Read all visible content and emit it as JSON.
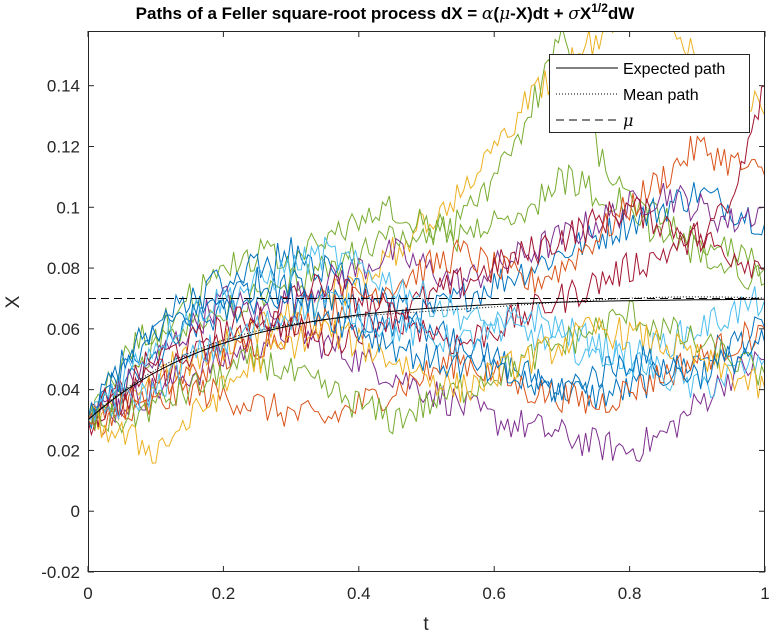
{
  "chart_data": {
    "type": "line",
    "title": {
      "prefix": "Paths of a Feller square-root process dX = ",
      "alpha": "α",
      "open": "(",
      "mu": "μ",
      "mid": "-X)dt + ",
      "sigma": "σ",
      "X": "X",
      "exponent": "1/2",
      "suffix": "dW"
    },
    "xlabel": "t",
    "ylabel": "X",
    "xlim": [
      0,
      1
    ],
    "ylim": [
      -0.02,
      0.158
    ],
    "xticks": [
      0,
      0.2,
      0.4,
      0.6,
      0.8,
      1
    ],
    "xtick_labels": [
      "0",
      "0.2",
      "0.4",
      "0.6",
      "0.8",
      "1"
    ],
    "yticks": [
      -0.02,
      0,
      0.02,
      0.04,
      0.06,
      0.08,
      0.1,
      0.12,
      0.14
    ],
    "ytick_labels": [
      "-0.02",
      "0",
      "0.02",
      "0.04",
      "0.06",
      "0.08",
      "0.1",
      "0.12",
      "0.14"
    ],
    "grid": false,
    "legend": {
      "placement": "top-right",
      "entries": [
        {
          "label": "Expected path",
          "style": "solid"
        },
        {
          "label": "Mean path",
          "style": "dotted"
        },
        {
          "label": "μ",
          "style": "dashed"
        }
      ]
    },
    "process": {
      "x0": 0.03,
      "mu": 0.07,
      "alpha": 5
    },
    "reference_lines": [
      {
        "name": "Expected path",
        "formula": "0.07 - 0.04*exp(-5t)",
        "color": "#000000"
      },
      {
        "name": "μ",
        "y": 0.07,
        "color": "#000000"
      }
    ],
    "colors": [
      "#0072BD",
      "#D95319",
      "#EDB120",
      "#7E2F8E",
      "#77AC30",
      "#4DBEEE",
      "#A2142F"
    ],
    "series": [
      {
        "color": "#EDB120",
        "x": [
          0,
          0.05,
          0.1,
          0.15,
          0.2,
          0.25,
          0.3,
          0.35,
          0.4,
          0.45,
          0.5,
          0.55,
          0.6,
          0.65,
          0.7,
          0.75,
          0.8,
          0.85,
          0.9,
          0.95,
          1
        ],
        "y": [
          0.03,
          0.035,
          0.045,
          0.05,
          0.055,
          0.06,
          0.065,
          0.07,
          0.075,
          0.085,
          0.095,
          0.105,
          0.12,
          0.135,
          0.145,
          0.155,
          0.17,
          0.165,
          0.15,
          0.14,
          0.13
        ]
      },
      {
        "color": "#77AC30",
        "x": [
          0,
          0.05,
          0.1,
          0.15,
          0.2,
          0.25,
          0.3,
          0.35,
          0.4,
          0.45,
          0.5,
          0.55,
          0.6,
          0.65,
          0.7,
          0.75,
          0.8,
          0.85,
          0.9,
          0.95,
          1
        ],
        "y": [
          0.03,
          0.04,
          0.055,
          0.06,
          0.065,
          0.07,
          0.075,
          0.08,
          0.085,
          0.09,
          0.09,
          0.095,
          0.11,
          0.13,
          0.155,
          0.12,
          0.1,
          0.09,
          0.085,
          0.08,
          0.075
        ]
      },
      {
        "color": "#77AC30",
        "x": [
          0,
          0.05,
          0.1,
          0.15,
          0.2,
          0.25,
          0.3,
          0.35,
          0.4,
          0.45,
          0.5,
          0.55,
          0.6,
          0.65,
          0.7,
          0.75,
          0.8,
          0.85,
          0.9,
          0.95,
          1
        ],
        "y": [
          0.03,
          0.05,
          0.06,
          0.07,
          0.08,
          0.085,
          0.08,
          0.09,
          0.095,
          0.1,
          0.095,
          0.09,
          0.095,
          0.1,
          0.11,
          0.105,
          0.1,
          0.095,
          0.09,
          0.085,
          0.08
        ]
      },
      {
        "color": "#0072BD",
        "x": [
          0,
          0.05,
          0.1,
          0.15,
          0.2,
          0.25,
          0.3,
          0.35,
          0.4,
          0.45,
          0.5,
          0.55,
          0.6,
          0.65,
          0.7,
          0.75,
          0.8,
          0.85,
          0.9,
          0.95,
          1
        ],
        "y": [
          0.03,
          0.045,
          0.06,
          0.07,
          0.075,
          0.08,
          0.085,
          0.08,
          0.075,
          0.07,
          0.06,
          0.055,
          0.05,
          0.045,
          0.04,
          0.038,
          0.04,
          0.045,
          0.05,
          0.055,
          0.06
        ]
      },
      {
        "color": "#0072BD",
        "x": [
          0,
          0.05,
          0.1,
          0.15,
          0.2,
          0.25,
          0.3,
          0.35,
          0.4,
          0.45,
          0.5,
          0.55,
          0.6,
          0.65,
          0.7,
          0.75,
          0.8,
          0.85,
          0.9,
          0.95,
          1
        ],
        "y": [
          0.03,
          0.04,
          0.05,
          0.06,
          0.065,
          0.07,
          0.075,
          0.07,
          0.065,
          0.06,
          0.065,
          0.07,
          0.075,
          0.08,
          0.085,
          0.09,
          0.095,
          0.1,
          0.105,
          0.1,
          0.095
        ]
      },
      {
        "color": "#7E2F8E",
        "x": [
          0,
          0.05,
          0.1,
          0.15,
          0.2,
          0.25,
          0.3,
          0.35,
          0.4,
          0.45,
          0.5,
          0.55,
          0.6,
          0.65,
          0.7,
          0.75,
          0.8,
          0.85,
          0.9,
          0.95,
          1
        ],
        "y": [
          0.03,
          0.035,
          0.04,
          0.045,
          0.05,
          0.055,
          0.06,
          0.055,
          0.05,
          0.045,
          0.04,
          0.035,
          0.03,
          0.028,
          0.025,
          0.022,
          0.02,
          0.025,
          0.035,
          0.045,
          0.05
        ]
      },
      {
        "color": "#7E2F8E",
        "x": [
          0,
          0.05,
          0.1,
          0.15,
          0.2,
          0.25,
          0.3,
          0.35,
          0.4,
          0.45,
          0.5,
          0.55,
          0.6,
          0.65,
          0.7,
          0.75,
          0.8,
          0.85,
          0.9,
          0.95,
          1
        ],
        "y": [
          0.03,
          0.04,
          0.05,
          0.06,
          0.07,
          0.065,
          0.07,
          0.075,
          0.08,
          0.085,
          0.08,
          0.075,
          0.08,
          0.085,
          0.09,
          0.095,
          0.1,
          0.105,
          0.1,
          0.095,
          0.1
        ]
      },
      {
        "color": "#D95319",
        "x": [
          0,
          0.05,
          0.1,
          0.15,
          0.2,
          0.25,
          0.3,
          0.35,
          0.4,
          0.45,
          0.5,
          0.55,
          0.6,
          0.65,
          0.7,
          0.75,
          0.8,
          0.85,
          0.9,
          0.95,
          1
        ],
        "y": [
          0.03,
          0.035,
          0.04,
          0.045,
          0.05,
          0.055,
          0.06,
          0.065,
          0.07,
          0.075,
          0.08,
          0.085,
          0.08,
          0.075,
          0.08,
          0.09,
          0.1,
          0.11,
          0.12,
          0.115,
          0.11
        ]
      },
      {
        "color": "#D95319",
        "x": [
          0,
          0.05,
          0.1,
          0.15,
          0.2,
          0.25,
          0.3,
          0.35,
          0.4,
          0.45,
          0.5,
          0.55,
          0.6,
          0.65,
          0.7,
          0.75,
          0.8,
          0.85,
          0.9,
          0.95,
          1
        ],
        "y": [
          0.03,
          0.03,
          0.035,
          0.04,
          0.038,
          0.035,
          0.032,
          0.03,
          0.035,
          0.04,
          0.045,
          0.05,
          0.045,
          0.04,
          0.038,
          0.035,
          0.04,
          0.045,
          0.05,
          0.055,
          0.06
        ]
      },
      {
        "color": "#A2142F",
        "x": [
          0,
          0.05,
          0.1,
          0.15,
          0.2,
          0.25,
          0.3,
          0.35,
          0.4,
          0.45,
          0.5,
          0.55,
          0.6,
          0.65,
          0.7,
          0.75,
          0.8,
          0.85,
          0.9,
          0.95,
          1
        ],
        "y": [
          0.03,
          0.04,
          0.05,
          0.055,
          0.06,
          0.065,
          0.06,
          0.055,
          0.06,
          0.065,
          0.07,
          0.075,
          0.08,
          0.085,
          0.09,
          0.095,
          0.1,
          0.095,
          0.09,
          0.085,
          0.08
        ]
      },
      {
        "color": "#A2142F",
        "x": [
          0,
          0.05,
          0.1,
          0.15,
          0.2,
          0.25,
          0.3,
          0.35,
          0.4,
          0.45,
          0.5,
          0.55,
          0.6,
          0.65,
          0.7,
          0.75,
          0.8,
          0.85,
          0.9,
          0.95,
          1
        ],
        "y": [
          0.03,
          0.035,
          0.045,
          0.05,
          0.055,
          0.06,
          0.07,
          0.075,
          0.07,
          0.065,
          0.06,
          0.055,
          0.06,
          0.065,
          0.07,
          0.075,
          0.08,
          0.085,
          0.09,
          0.1,
          0.14
        ]
      },
      {
        "color": "#4DBEEE",
        "x": [
          0,
          0.05,
          0.1,
          0.15,
          0.2,
          0.25,
          0.3,
          0.35,
          0.4,
          0.45,
          0.5,
          0.55,
          0.6,
          0.65,
          0.7,
          0.75,
          0.8,
          0.85,
          0.9,
          0.95,
          1
        ],
        "y": [
          0.03,
          0.045,
          0.055,
          0.065,
          0.07,
          0.075,
          0.08,
          0.085,
          0.08,
          0.075,
          0.07,
          0.065,
          0.06,
          0.058,
          0.055,
          0.052,
          0.05,
          0.055,
          0.06,
          0.065,
          0.07
        ]
      },
      {
        "color": "#4DBEEE",
        "x": [
          0,
          0.05,
          0.1,
          0.15,
          0.2,
          0.25,
          0.3,
          0.35,
          0.4,
          0.45,
          0.5,
          0.55,
          0.6,
          0.65,
          0.7,
          0.75,
          0.8,
          0.85,
          0.9,
          0.95,
          1
        ],
        "y": [
          0.03,
          0.035,
          0.04,
          0.05,
          0.055,
          0.06,
          0.065,
          0.07,
          0.065,
          0.06,
          0.058,
          0.055,
          0.06,
          0.065,
          0.06,
          0.055,
          0.05,
          0.045,
          0.04,
          0.045,
          0.05
        ]
      },
      {
        "color": "#77AC30",
        "x": [
          0,
          0.05,
          0.1,
          0.15,
          0.2,
          0.25,
          0.3,
          0.35,
          0.4,
          0.45,
          0.5,
          0.55,
          0.6,
          0.65,
          0.7,
          0.75,
          0.8,
          0.85,
          0.9,
          0.95,
          1
        ],
        "y": [
          0.03,
          0.03,
          0.035,
          0.04,
          0.045,
          0.05,
          0.045,
          0.04,
          0.035,
          0.03,
          0.035,
          0.04,
          0.045,
          0.05,
          0.055,
          0.06,
          0.065,
          0.06,
          0.055,
          0.05,
          0.045
        ]
      },
      {
        "color": "#EDB120",
        "x": [
          0,
          0.05,
          0.1,
          0.15,
          0.2,
          0.25,
          0.3,
          0.35,
          0.4,
          0.45,
          0.5,
          0.55,
          0.6,
          0.65,
          0.7,
          0.75,
          0.8,
          0.85,
          0.9,
          0.95,
          1
        ],
        "y": [
          0.03,
          0.025,
          0.02,
          0.03,
          0.04,
          0.05,
          0.055,
          0.06,
          0.055,
          0.05,
          0.045,
          0.04,
          0.045,
          0.05,
          0.055,
          0.06,
          0.058,
          0.055,
          0.05,
          0.045,
          0.04
        ]
      },
      {
        "color": "#0072BD",
        "x": [
          0,
          0.05,
          0.1,
          0.15,
          0.2,
          0.25,
          0.3,
          0.35,
          0.4,
          0.45,
          0.5,
          0.55,
          0.6,
          0.65,
          0.7,
          0.75,
          0.8,
          0.85,
          0.9,
          0.95,
          1
        ],
        "y": [
          0.03,
          0.05,
          0.06,
          0.065,
          0.07,
          0.075,
          0.07,
          0.065,
          0.06,
          0.055,
          0.05,
          0.048,
          0.045,
          0.042,
          0.04,
          0.045,
          0.05,
          0.048,
          0.045,
          0.05,
          0.055
        ]
      }
    ]
  }
}
